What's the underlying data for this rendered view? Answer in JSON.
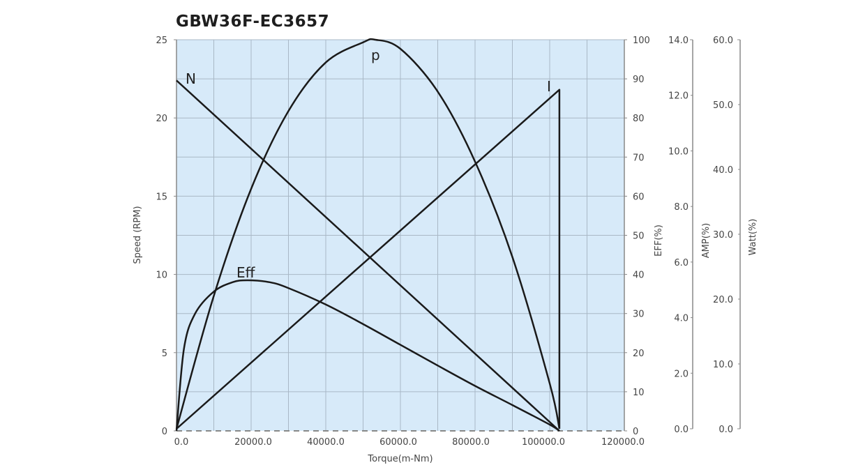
{
  "chart_data": {
    "type": "line",
    "title": "GBW36F-EC3657",
    "xlabel": "Torque(m-Nm)",
    "x_ticks": [
      "0.0",
      "20000.0",
      "40000.0",
      "60000.0",
      "80000.0",
      "100000.0",
      "120000.0"
    ],
    "xlim": [
      0,
      120000
    ],
    "grid": true,
    "axes": [
      {
        "id": "speed",
        "label": "Speed (RPM)",
        "side": "left",
        "range": [
          0,
          25
        ],
        "ticks": [
          "0",
          "5",
          "10",
          "15",
          "20",
          "25"
        ]
      },
      {
        "id": "eff",
        "label": "EFF(%)",
        "side": "right",
        "range": [
          0,
          100
        ],
        "ticks": [
          "0",
          "10",
          "20",
          "30",
          "40",
          "50",
          "60",
          "70",
          "80",
          "90",
          "100"
        ]
      },
      {
        "id": "amp",
        "label": "AMP(%)",
        "side": "right",
        "range": [
          0,
          14
        ],
        "ticks": [
          "0.0",
          "2.0",
          "4.0",
          "6.0",
          "8.0",
          "10.0",
          "12.0",
          "14.0"
        ]
      },
      {
        "id": "watt",
        "label": "Watt(%)",
        "side": "right",
        "range": [
          0,
          60
        ],
        "ticks": [
          "0.0",
          "10.0",
          "20.0",
          "30.0",
          "40.0",
          "50.0",
          "60.0"
        ]
      }
    ],
    "series": [
      {
        "name": "N",
        "axis": "speed",
        "x": [
          0,
          102600
        ],
        "values": [
          22.4,
          0
        ]
      },
      {
        "name": "I",
        "axis": "amp",
        "x": [
          0,
          102600,
          102600
        ],
        "values": [
          0,
          12.2,
          0
        ]
      },
      {
        "name": "p",
        "axis": "watt",
        "x": [
          0,
          10000,
          20000,
          30000,
          40000,
          50000,
          53300,
          60000,
          70000,
          80000,
          90000,
          100000,
          102600
        ],
        "values": [
          0,
          20.5,
          37.0,
          49.0,
          56.5,
          59.6,
          60.0,
          58.6,
          52.0,
          41.2,
          26.5,
          7.0,
          0
        ]
      },
      {
        "name": "Eff",
        "axis": "eff",
        "x": [
          0,
          2000,
          5000,
          10000,
          15000,
          19000,
          25000,
          30000,
          40000,
          50000,
          60000,
          70000,
          80000,
          90000,
          100000,
          102600
        ],
        "values": [
          0,
          21.0,
          30.0,
          35.6,
          38.0,
          38.5,
          38.0,
          36.5,
          32.3,
          27.3,
          22.0,
          16.7,
          11.5,
          6.6,
          1.6,
          0
        ]
      }
    ],
    "curve_labels": [
      "N",
      "p",
      "I",
      "Eff"
    ]
  }
}
